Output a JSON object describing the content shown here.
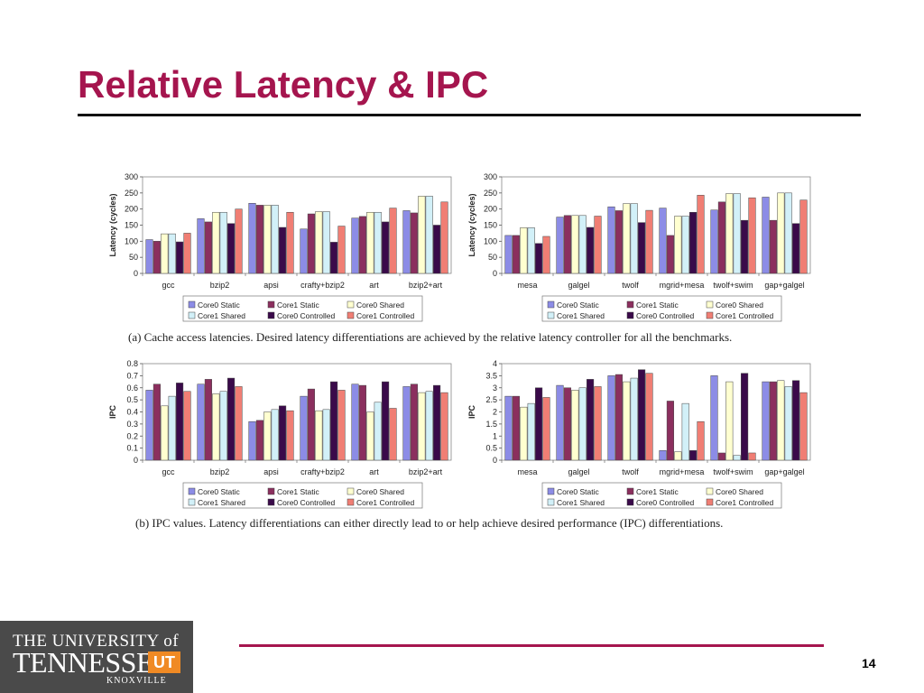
{
  "slide": {
    "title": "Relative Latency & IPC",
    "page_number": "14",
    "caption_a": "(a) Cache access latencies. Desired latency differentiations are achieved by the relative latency controller for all the benchmarks.",
    "caption_b": "(b) IPC values. Latency differentiations can either directly lead to or help achieve desired performance (IPC) differentiations.",
    "logo": {
      "line1": "THE UNIVERSITY of",
      "line2": "TENNESSEE",
      "mark": "UT",
      "line3": "KNOXVILLE"
    }
  },
  "series_colors": [
    "#8c8ce6",
    "#8b2f5e",
    "#ffffd0",
    "#d2f0f8",
    "#3a0a4a",
    "#f07e74"
  ],
  "chart_data": [
    {
      "type": "bar",
      "ylabel": "Latency (cycles)",
      "ylim": [
        0,
        300
      ],
      "yticks": [
        0,
        50,
        100,
        150,
        200,
        250,
        300
      ],
      "categories": [
        "gcc",
        "bzip2",
        "apsi",
        "crafty+bzip2",
        "art",
        "bzip2+art"
      ],
      "legend": [
        "Core0 Static",
        "Core1 Static",
        "Core0 Shared",
        "Core1 Shared",
        "Core0 Controlled",
        "Core1 Controlled"
      ],
      "series": [
        {
          "name": "Core0 Static",
          "values": [
            105,
            170,
            218,
            138,
            172,
            195
          ]
        },
        {
          "name": "Core1 Static",
          "values": [
            100,
            160,
            212,
            185,
            177,
            188
          ]
        },
        {
          "name": "Core0 Shared",
          "values": [
            123,
            190,
            212,
            192,
            190,
            240
          ]
        },
        {
          "name": "Core1 Shared",
          "values": [
            123,
            190,
            212,
            192,
            190,
            240
          ]
        },
        {
          "name": "Core0 Controlled",
          "values": [
            98,
            155,
            143,
            97,
            160,
            150
          ]
        },
        {
          "name": "Core1 Controlled",
          "values": [
            125,
            200,
            190,
            147,
            203,
            222
          ]
        }
      ]
    },
    {
      "type": "bar",
      "ylabel": "Latency (cycles)",
      "ylim": [
        0,
        300
      ],
      "yticks": [
        0,
        50,
        100,
        150,
        200,
        250,
        300
      ],
      "categories": [
        "mesa",
        "galgel",
        "twolf",
        "mgrid+mesa",
        "twolf+swim",
        "gap+galgel"
      ],
      "legend": [
        "Core0 Static",
        "Core1 Static",
        "Core0 Shared",
        "Core1 Shared",
        "Core0 Controlled",
        "Core1 Controlled"
      ],
      "series": [
        {
          "name": "Core0 Static",
          "values": [
            118,
            175,
            207,
            203,
            197,
            237
          ]
        },
        {
          "name": "Core1 Static",
          "values": [
            118,
            180,
            195,
            118,
            222,
            165
          ]
        },
        {
          "name": "Core0 Shared",
          "values": [
            142,
            180,
            217,
            178,
            248,
            250
          ]
        },
        {
          "name": "Core1 Shared",
          "values": [
            142,
            180,
            217,
            178,
            248,
            250
          ]
        },
        {
          "name": "Core0 Controlled",
          "values": [
            93,
            143,
            158,
            190,
            165,
            155
          ]
        },
        {
          "name": "Core1 Controlled",
          "values": [
            115,
            178,
            196,
            243,
            235,
            228
          ]
        }
      ]
    },
    {
      "type": "bar",
      "ylabel": "IPC",
      "ylim": [
        0,
        0.8
      ],
      "yticks": [
        0,
        0.1,
        0.2,
        0.3,
        0.4,
        0.5,
        0.6,
        0.7,
        0.8
      ],
      "categories": [
        "gcc",
        "bzip2",
        "apsi",
        "crafty+bzip2",
        "art",
        "bzip2+art"
      ],
      "legend": [
        "Core0 Static",
        "Core1 Static",
        "Core0 Shared",
        "Core1 Shared",
        "Core0 Controlled",
        "Core1 Controlled"
      ],
      "series": [
        {
          "name": "Core0 Static",
          "values": [
            0.58,
            0.63,
            0.32,
            0.53,
            0.63,
            0.61
          ]
        },
        {
          "name": "Core1 Static",
          "values": [
            0.63,
            0.67,
            0.33,
            0.59,
            0.62,
            0.63
          ]
        },
        {
          "name": "Core0 Shared",
          "values": [
            0.45,
            0.55,
            0.4,
            0.41,
            0.4,
            0.56
          ]
        },
        {
          "name": "Core1 Shared",
          "values": [
            0.53,
            0.57,
            0.42,
            0.42,
            0.48,
            0.57
          ]
        },
        {
          "name": "Core0 Controlled",
          "values": [
            0.64,
            0.68,
            0.45,
            0.65,
            0.65,
            0.62
          ]
        },
        {
          "name": "Core1 Controlled",
          "values": [
            0.57,
            0.61,
            0.41,
            0.58,
            0.43,
            0.56
          ]
        }
      ]
    },
    {
      "type": "bar",
      "ylabel": "IPC",
      "ylim": [
        0,
        4
      ],
      "yticks": [
        0,
        0.5,
        1,
        1.5,
        2,
        2.5,
        3,
        3.5,
        4
      ],
      "categories": [
        "mesa",
        "galgel",
        "twolf",
        "mgrid+mesa",
        "twolf+swim",
        "gap+galgel"
      ],
      "legend": [
        "Core0 Static",
        "Core1 Static",
        "Core0 Shared",
        "Core1 Shared",
        "Core0 Controlled",
        "Core1 Controlled"
      ],
      "series": [
        {
          "name": "Core0 Static",
          "values": [
            2.65,
            3.1,
            3.5,
            0.4,
            3.5,
            3.25
          ]
        },
        {
          "name": "Core1 Static",
          "values": [
            2.65,
            3.0,
            3.55,
            2.45,
            0.3,
            3.25
          ]
        },
        {
          "name": "Core0 Shared",
          "values": [
            2.2,
            2.9,
            3.25,
            0.35,
            3.25,
            3.3
          ]
        },
        {
          "name": "Core1 Shared",
          "values": [
            2.35,
            3.0,
            3.4,
            2.35,
            0.2,
            3.05
          ]
        },
        {
          "name": "Core0 Controlled",
          "values": [
            3.0,
            3.35,
            3.75,
            0.4,
            3.6,
            3.3
          ]
        },
        {
          "name": "Core1 Controlled",
          "values": [
            2.6,
            3.05,
            3.6,
            1.6,
            0.3,
            2.8
          ]
        }
      ]
    }
  ]
}
